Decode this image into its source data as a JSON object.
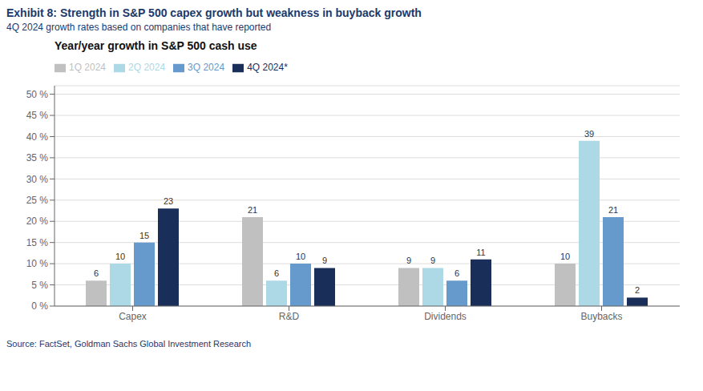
{
  "chart_data": {
    "type": "bar",
    "title": "Exhibit 8: Strength in S&P 500 capex growth but weakness in buyback growth",
    "subtitle": "4Q 2024 growth rates based on companies that have reported",
    "annotations": [
      "Year/year growth in S&P 500 cash use",
      "Source: FactSet, Goldman Sachs Global Investment Research"
    ],
    "categories": [
      "Capex",
      "R&D",
      "Dividends",
      "Buybacks"
    ],
    "series": [
      {
        "name": "1Q 2024",
        "color": "#c0c0c0",
        "values": [
          6,
          21,
          9,
          10
        ]
      },
      {
        "name": "2Q 2024",
        "color": "#add8e6",
        "values": [
          10,
          6,
          9,
          39
        ]
      },
      {
        "name": "3Q 2024",
        "color": "#6699cc",
        "values": [
          15,
          10,
          6,
          21
        ]
      },
      {
        "name": "4Q 2024*",
        "color": "#1a2e5a",
        "values": [
          23,
          9,
          11,
          2
        ]
      }
    ],
    "ylim": [
      0,
      52
    ],
    "yticks": [
      {
        "value": 0,
        "label": "0 %"
      },
      {
        "value": 5,
        "label": "5 %"
      },
      {
        "value": 10,
        "label": "10 %"
      },
      {
        "value": 15,
        "label": "15 %"
      },
      {
        "value": 20,
        "label": "20 %"
      },
      {
        "value": 25,
        "label": "25 %"
      },
      {
        "value": 30,
        "label": "30 %"
      },
      {
        "value": 35,
        "label": "35 %"
      },
      {
        "value": 40,
        "label": "40 %"
      },
      {
        "value": 45,
        "label": "45 %"
      },
      {
        "value": 50,
        "label": "50 %"
      }
    ],
    "grid": true,
    "legend": "upper left",
    "data_labels": true
  }
}
